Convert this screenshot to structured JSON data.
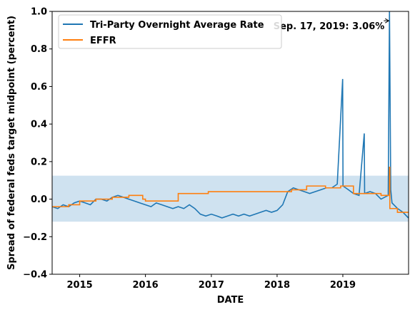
{
  "chart_data": {
    "type": "line",
    "xlabel": "DATE",
    "ylabel": "Spread of federal feds target midpoint (percent)",
    "xlim": [
      "2014-08-01",
      "2020-01-01"
    ],
    "ylim": [
      -0.4,
      1.0
    ],
    "x_ticks": [
      {
        "value": "2015-01-01",
        "label": "2015"
      },
      {
        "value": "2016-01-01",
        "label": "2016"
      },
      {
        "value": "2017-01-01",
        "label": "2017"
      },
      {
        "value": "2018-01-01",
        "label": "2018"
      },
      {
        "value": "2019-01-01",
        "label": "2019"
      }
    ],
    "y_ticks": [
      -0.4,
      -0.2,
      0.0,
      0.2,
      0.4,
      0.6,
      0.8,
      1.0
    ],
    "y_tick_labels": [
      "−0.4",
      "−0.2",
      "0.0",
      "0.2",
      "0.4",
      "0.6",
      "0.8",
      "1.0"
    ],
    "band": {
      "y_low": -0.12,
      "y_high": 0.125,
      "color": "#cfe2f0"
    },
    "legend": {
      "placement": "top-left"
    },
    "annotation": {
      "text": "Sep. 17, 2019: 3.06%",
      "x": "2019-09-17",
      "y": 0.95
    },
    "series": [
      {
        "name": "Tri-Party Overnight Average Rate",
        "color": "#1f77b4",
        "x": [
          "2014-08-01",
          "2014-09-01",
          "2014-10-01",
          "2014-11-01",
          "2014-12-01",
          "2015-01-01",
          "2015-02-01",
          "2015-03-01",
          "2015-04-01",
          "2015-05-01",
          "2015-06-01",
          "2015-07-01",
          "2015-08-01",
          "2015-09-01",
          "2015-10-01",
          "2015-11-01",
          "2015-12-01",
          "2016-01-01",
          "2016-02-01",
          "2016-03-01",
          "2016-04-01",
          "2016-05-01",
          "2016-06-01",
          "2016-07-01",
          "2016-08-01",
          "2016-09-01",
          "2016-10-01",
          "2016-11-01",
          "2016-12-01",
          "2017-01-01",
          "2017-02-01",
          "2017-03-01",
          "2017-04-01",
          "2017-05-01",
          "2017-06-01",
          "2017-07-01",
          "2017-08-01",
          "2017-09-01",
          "2017-10-01",
          "2017-11-01",
          "2017-12-01",
          "2018-01-01",
          "2018-02-01",
          "2018-03-01",
          "2018-04-01",
          "2018-05-01",
          "2018-06-01",
          "2018-07-01",
          "2018-08-01",
          "2018-09-01",
          "2018-10-01",
          "2018-11-01",
          "2018-12-01",
          "2018-12-31",
          "2019-01-02",
          "2019-02-01",
          "2019-03-01",
          "2019-04-01",
          "2019-04-30",
          "2019-05-02",
          "2019-06-01",
          "2019-07-01",
          "2019-08-01",
          "2019-09-10",
          "2019-09-17",
          "2019-09-24",
          "2019-10-01",
          "2019-11-01",
          "2019-12-01",
          "2019-12-31"
        ],
        "y": [
          -0.04,
          -0.05,
          -0.03,
          -0.04,
          -0.02,
          -0.01,
          -0.02,
          -0.03,
          0.0,
          0.0,
          -0.01,
          0.01,
          0.02,
          0.01,
          0.0,
          -0.01,
          -0.02,
          -0.03,
          -0.04,
          -0.02,
          -0.03,
          -0.04,
          -0.05,
          -0.04,
          -0.05,
          -0.03,
          -0.05,
          -0.08,
          -0.09,
          -0.08,
          -0.09,
          -0.1,
          -0.09,
          -0.08,
          -0.09,
          -0.08,
          -0.09,
          -0.08,
          -0.07,
          -0.06,
          -0.07,
          -0.06,
          -0.03,
          0.04,
          0.06,
          0.05,
          0.04,
          0.03,
          0.04,
          0.05,
          0.06,
          0.06,
          0.08,
          0.64,
          0.07,
          0.05,
          0.03,
          0.02,
          0.35,
          0.03,
          0.04,
          0.03,
          0.0,
          0.02,
          1.0,
          0.05,
          -0.02,
          -0.05,
          -0.07,
          -0.1
        ]
      },
      {
        "name": "EFFR",
        "color": "#ff7f0e",
        "x": [
          "2014-08-01",
          "2014-11-01",
          "2015-01-01",
          "2015-04-01",
          "2015-07-01",
          "2015-10-01",
          "2015-12-17",
          "2016-01-01",
          "2016-04-01",
          "2016-07-01",
          "2016-10-01",
          "2016-12-15",
          "2017-03-16",
          "2017-06-15",
          "2017-09-01",
          "2017-12-14",
          "2018-03-22",
          "2018-06-14",
          "2018-09-27",
          "2018-12-20",
          "2019-03-01",
          "2019-06-01",
          "2019-08-01",
          "2019-09-17",
          "2019-09-19",
          "2019-10-31",
          "2019-12-31"
        ],
        "y": [
          -0.04,
          -0.03,
          -0.01,
          0.0,
          0.01,
          0.02,
          0.0,
          -0.01,
          -0.01,
          0.03,
          0.03,
          0.04,
          0.04,
          0.04,
          0.04,
          0.04,
          0.05,
          0.07,
          0.06,
          0.07,
          0.03,
          0.03,
          0.02,
          0.17,
          -0.05,
          -0.07,
          -0.07
        ]
      }
    ]
  }
}
